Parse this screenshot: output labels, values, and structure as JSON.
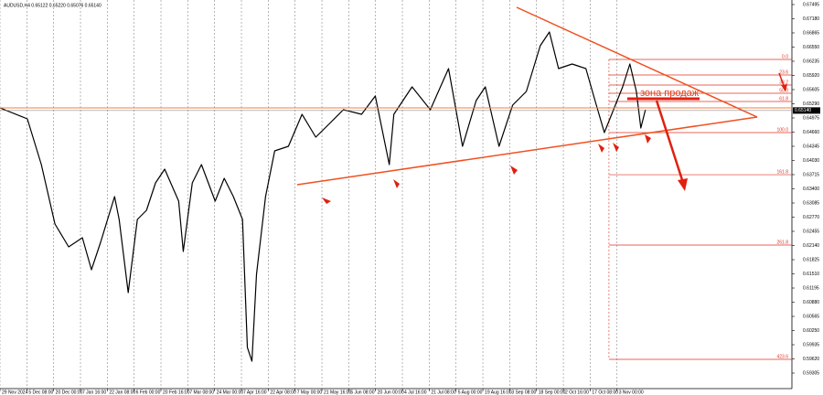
{
  "chart_data": {
    "type": "line",
    "header_text": "AUDUSD,H4  0.65122 0.65220 0.65076 0.65140",
    "color": "#000000",
    "x": [
      0,
      1.02,
      1.54,
      2.05,
      2.56,
      3.07,
      3.41,
      3.75,
      4.27,
      4.44,
      4.78,
      5.12,
      5.46,
      5.8,
      6.14,
      6.66,
      6.83,
      7.17,
      7.51,
      8.02,
      8.36,
      8.7,
      9.04,
      9.22,
      9.39,
      9.56,
      9.9,
      10.24,
      10.75,
      11.26,
      11.77,
      12.29,
      12.8,
      13.48,
      13.99,
      14.51,
      14.68,
      15.36,
      16.04,
      16.72,
      17.24,
      17.75,
      18.09,
      18.6,
      19.11,
      19.62,
      20.14,
      20.48,
      20.82,
      21.33,
      21.84,
      22.18,
      22.53,
      22.87,
      23.21,
      23.48,
      23.72,
      23.89,
      24.06
    ],
    "values": [
      0.65198,
      0.64954,
      0.63938,
      0.62617,
      0.62109,
      0.62312,
      0.61601,
      0.62211,
      0.63227,
      0.62719,
      0.61093,
      0.62719,
      0.62922,
      0.63532,
      0.63836,
      0.63125,
      0.62008,
      0.63532,
      0.63938,
      0.63125,
      0.63633,
      0.63227,
      0.62719,
      0.59874,
      0.59569,
      0.615,
      0.63227,
      0.64243,
      0.64344,
      0.65056,
      0.64548,
      0.64852,
      0.65157,
      0.65056,
      0.65462,
      0.63938,
      0.65056,
      0.65665,
      0.65157,
      0.66072,
      0.64344,
      0.6536,
      0.65665,
      0.64344,
      0.65259,
      0.65564,
      0.6658,
      0.66884,
      0.66072,
      0.66173,
      0.66072,
      0.6536,
      0.64649,
      0.65157,
      0.65665,
      0.66173,
      0.65564,
      0.64751,
      0.65157
    ],
    "xlim": [
      0,
      29.52
    ],
    "xticks": [
      {
        "value": 0,
        "label": "29 Nov 2024"
      },
      {
        "value": 1,
        "label": "5 Dec 08:00"
      },
      {
        "value": 2,
        "label": "20 Dec 00:00"
      },
      {
        "value": 3,
        "label": "7 Jan 16:00"
      },
      {
        "value": 4,
        "label": "22 Jan 08:00"
      },
      {
        "value": 5,
        "label": "6 Feb 00:00"
      },
      {
        "value": 6,
        "label": "20 Feb 16:00"
      },
      {
        "value": 7,
        "label": "7 Mar 08:00"
      },
      {
        "value": 8,
        "label": "24 Mar 00:00"
      },
      {
        "value": 9,
        "label": "7 Apr 16:00"
      },
      {
        "value": 10,
        "label": "22 Apr 08:00"
      },
      {
        "value": 11,
        "label": "7 May 00:00"
      },
      {
        "value": 12,
        "label": "21 May 16:00"
      },
      {
        "value": 13,
        "label": "5 Jun 08:00"
      },
      {
        "value": 14,
        "label": "20 Jun 00:00"
      },
      {
        "value": 15,
        "label": "4 Jul 16:00"
      },
      {
        "value": 16,
        "label": "21 Jul 08:00"
      },
      {
        "value": 17,
        "label": "5 Aug 00:00"
      },
      {
        "value": 18,
        "label": "19 Aug 16:00"
      },
      {
        "value": 19,
        "label": "3 Sep 08:00"
      },
      {
        "value": 20,
        "label": "18 Sep 00:00"
      },
      {
        "value": 21,
        "label": "2 Oct 16:00"
      },
      {
        "value": 22,
        "label": "17 Oct 08:00"
      },
      {
        "value": 23,
        "label": "3 Nov 00:00"
      }
    ],
    "ylim": [
      0.5896,
      0.67596
    ],
    "yticks": [
      {
        "value": 0.59305,
        "label": "0.59305"
      },
      {
        "value": 0.5962,
        "label": "0.59620"
      },
      {
        "value": 0.59935,
        "label": "0.59935"
      },
      {
        "value": 0.6025,
        "label": "0.60250"
      },
      {
        "value": 0.60565,
        "label": "0.60565"
      },
      {
        "value": 0.6088,
        "label": "0.60880"
      },
      {
        "value": 0.61195,
        "label": "0.61195"
      },
      {
        "value": 0.6151,
        "label": "0.61510"
      },
      {
        "value": 0.61825,
        "label": "0.61825"
      },
      {
        "value": 0.6214,
        "label": "0.62140"
      },
      {
        "value": 0.62455,
        "label": "0.62455"
      },
      {
        "value": 0.6277,
        "label": "0.62770"
      },
      {
        "value": 0.63085,
        "label": "0.63085"
      },
      {
        "value": 0.634,
        "label": "0.63400"
      },
      {
        "value": 0.63715,
        "label": "0.63715"
      },
      {
        "value": 0.6403,
        "label": "0.64030"
      },
      {
        "value": 0.64345,
        "label": "0.64345"
      },
      {
        "value": 0.6466,
        "label": "0.64660"
      },
      {
        "value": 0.64975,
        "label": "0.64975"
      },
      {
        "value": 0.6529,
        "label": "0.65290"
      },
      {
        "value": 0.65605,
        "label": "0.65605"
      },
      {
        "value": 0.6592,
        "label": "0.65920"
      },
      {
        "value": 0.66235,
        "label": "0.66235"
      },
      {
        "value": 0.6655,
        "label": "0.66550"
      },
      {
        "value": 0.66865,
        "label": "0.66865"
      },
      {
        "value": 0.6718,
        "label": "0.67180"
      },
      {
        "value": 0.67495,
        "label": "0.67495"
      }
    ],
    "grid": true,
    "last_price": {
      "value": 0.6514,
      "label": "0.65140"
    },
    "fib_color": "#e03020",
    "fib_start": 22.7,
    "fib_levels": [
      {
        "value": 0.66275,
        "label": "0.0"
      },
      {
        "value": 0.65929,
        "label": "23.6"
      },
      {
        "value": 0.65706,
        "label": "38.2"
      },
      {
        "value": 0.65523,
        "label": "50.0"
      },
      {
        "value": 0.6534,
        "label": "61.8"
      },
      {
        "value": 0.64649,
        "label": "100.0"
      },
      {
        "value": 0.63714,
        "label": "161.8"
      },
      {
        "value": 0.6215,
        "label": "261.8"
      },
      {
        "value": 0.5961,
        "label": "423.6"
      }
    ],
    "zone_label": "зона продаж"
  }
}
